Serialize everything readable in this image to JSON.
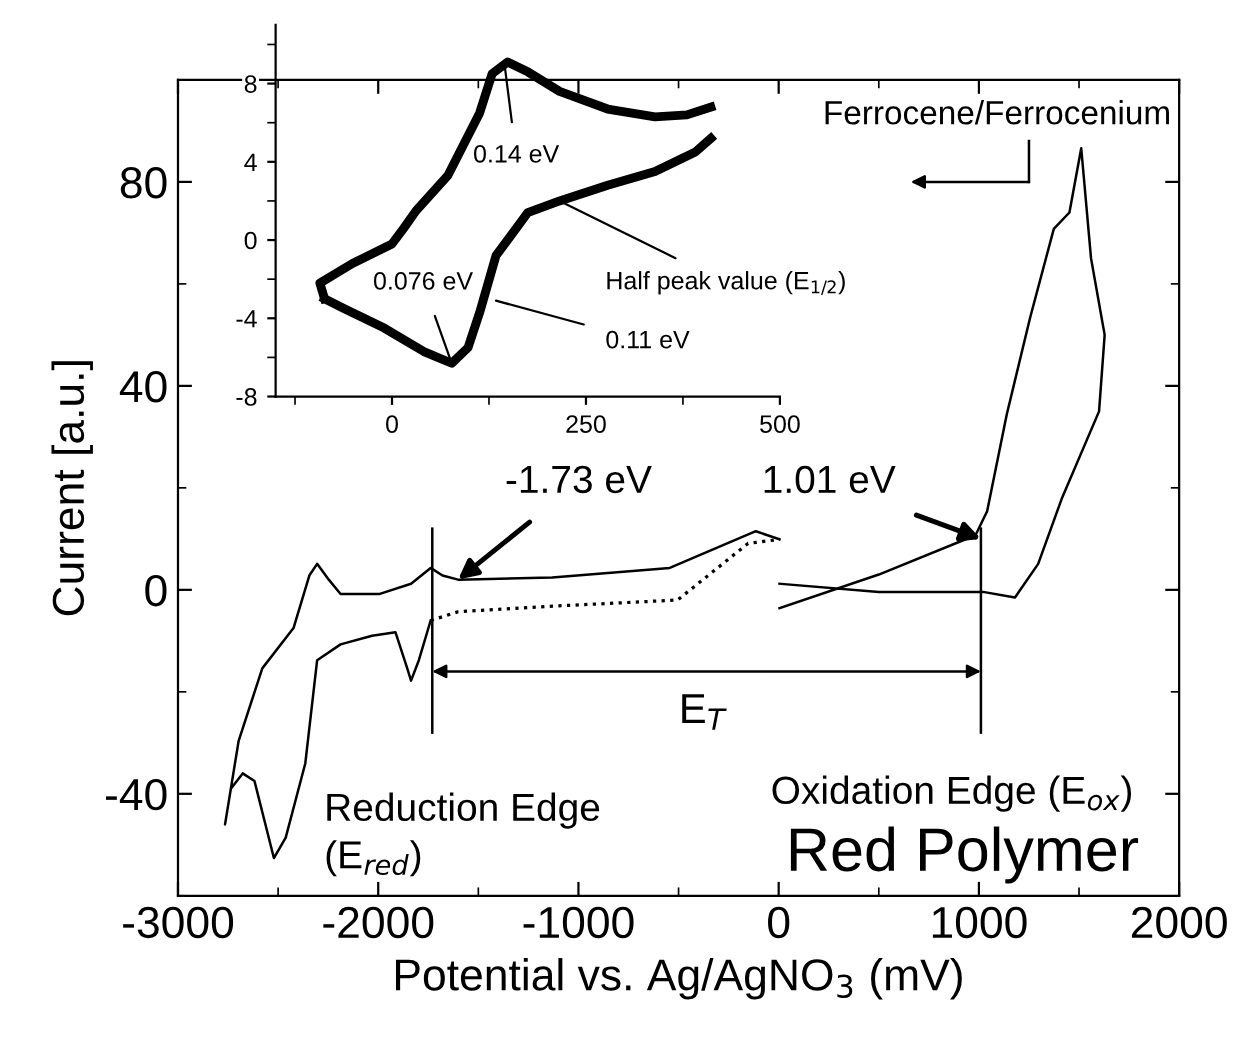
{
  "chart_data": [
    {
      "type": "line",
      "xlabel": "Potential vs. Ag/AgNO$_{3}$ (mV)",
      "ylabel": "Current [a.u.]",
      "xlim": [
        -3000,
        2000
      ],
      "ylim": [
        -60,
        100
      ],
      "xticks": [
        -3000,
        {
          "value": -2500,
          "label": null
        },
        -2000,
        {
          "value": -1500,
          "label": null
        },
        -1000,
        {
          "value": -500,
          "label": null
        },
        0,
        {
          "value": 500,
          "label": null
        },
        1000,
        {
          "value": 1500,
          "label": null
        },
        2000
      ],
      "yticks": [
        {
          "value": -60,
          "label": null
        },
        -40,
        {
          "value": -20,
          "label": null
        },
        0,
        {
          "value": 20,
          "label": null
        },
        40,
        {
          "value": 60,
          "label": null
        },
        80,
        {
          "value": 100,
          "label": null
        }
      ],
      "grid": false,
      "legend": false,
      "series": [
        {
          "color": "#000000",
          "line_style": "solid",
          "x": [
            4,
            -114,
            -544,
            -1131,
            -1601,
            -1679,
            -1738,
            -1836,
            -1992,
            -2188,
            -2247,
            -2305,
            -2344,
            -2423,
            -2579,
            -2697,
            -2765,
            -2736,
            -2677,
            -2618,
            -2521,
            -2462,
            -2364,
            -2305,
            -2188,
            -2031,
            -1914,
            -1855,
            -1836,
            -1797,
            -1738
          ],
          "values": [
            9.9,
            11.5,
            4.3,
            2.4,
            2,
            2.8,
            4.3,
            1.2,
            -0.8,
            -0.8,
            2,
            5.1,
            2.8,
            -7.5,
            -15.4,
            -29.6,
            -46,
            -39,
            -36,
            -37.5,
            -52.6,
            -48.6,
            -34,
            -13.8,
            -10.7,
            -9,
            -8.3,
            -15.4,
            -17.8,
            -13.8,
            -6
          ]
        },
        {
          "color": "#000000",
          "line_style": "dotted",
          "x": [
            -1738,
            -1601,
            -1131,
            -505,
            -153,
            4
          ],
          "values": [
            -6,
            -4.3,
            -3.2,
            -2,
            9.1,
            9.9
          ]
        },
        {
          "color": "#000000",
          "line_style": "solid",
          "x": [
            4,
            500,
            983,
            1041,
            1139,
            1256,
            1374,
            1452,
            1511,
            1560,
            1628,
            1600,
            1413,
            1296,
            1180,
            1021,
            500,
            4
          ],
          "values": [
            -3.6,
            3,
            10.7,
            15.4,
            34.4,
            53.4,
            70.8,
            74,
            86.6,
            65,
            50,
            35,
            17.8,
            5.1,
            -1.5,
            -0.4,
            -0.4,
            1.2
          ]
        }
      ],
      "ref_lines": [
        {
          "axis": "x",
          "value": -1730
        },
        {
          "axis": "x",
          "value": 1010
        }
      ],
      "annotations": [
        {
          "text": "-1.73 eV",
          "x": -1601,
          "y": 2
        },
        {
          "text": "1.01 eV",
          "x": 1010,
          "y": 10
        },
        "E$_{T}$",
        "Reduction Edge\n(E$_{red}$)",
        "Oxidation Edge (E$_{ox}$)",
        "Red Polymer",
        "Ferrocene/Ferrocenium"
      ]
    },
    {
      "type": "line",
      "xlim": [
        -150,
        500
      ],
      "ylim": [
        -8,
        11
      ],
      "xticks": [
        {
          "value": -125,
          "label": null
        },
        0,
        {
          "value": 125,
          "label": null
        },
        250,
        {
          "value": 375,
          "label": null
        },
        500
      ],
      "yticks": [
        -8,
        {
          "value": -6,
          "label": null
        },
        -4,
        {
          "value": -2,
          "label": null
        },
        0,
        {
          "value": 2,
          "label": null
        },
        4,
        {
          "value": 6,
          "label": null
        },
        8,
        {
          "value": 10,
          "label": null
        }
      ],
      "grid": false,
      "legend": false,
      "series": [
        {
          "color": "#000000",
          "line_style": "solid",
          "x": [
            -87,
            -93,
            -51,
            0,
            15,
            31,
            72,
            113,
            129,
            149,
            175,
            216,
            278,
            339,
            380,
            411
          ],
          "values": [
            -3.0,
            -2.2,
            -1.2,
            -0.2,
            0.6,
            1.5,
            3.3,
            6.5,
            8.5,
            9.1,
            8.6,
            7.6,
            6.7,
            6.3,
            6.4,
            6.8
          ]
        },
        {
          "color": "#000000",
          "line_style": "solid",
          "x": [
            411,
            391,
            339,
            278,
            216,
            175,
            134,
            113,
            98,
            77,
            41,
            -10,
            -62,
            -87
          ],
          "values": [
            5.2,
            4.5,
            3.5,
            2.8,
            2.0,
            1.4,
            -0.8,
            -3.7,
            -5.5,
            -6.3,
            -5.7,
            -4.5,
            -3.5,
            -3.0
          ]
        }
      ],
      "annotations": [
        {
          "text": "0.14 eV",
          "x": 145,
          "y": 9
        },
        {
          "text": "0.076 eV",
          "x": 77,
          "y": -6.3
        },
        {
          "text": "Half peak value (E$_{1/2}$)",
          "x": 216,
          "y": 2.0
        },
        {
          "text": "0.11 eV",
          "x": 134,
          "y": -3.1
        }
      ]
    }
  ]
}
